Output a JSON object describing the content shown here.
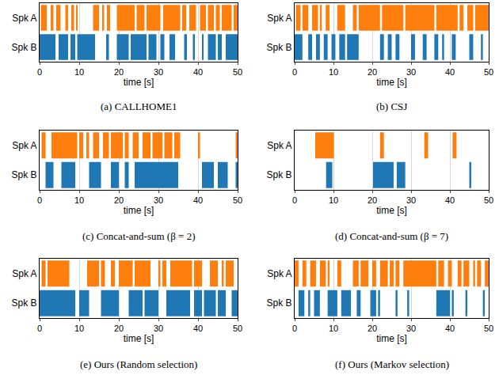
{
  "chart_data": [
    {
      "type": "timeline",
      "title": "(a) CALLHOME1",
      "x_label": "time [s]",
      "xlim": [
        0,
        50
      ],
      "xticks": [
        0,
        10,
        20,
        30,
        40,
        50
      ],
      "grid": true,
      "categories": [
        "Spk A",
        "Spk B"
      ],
      "series": [
        {
          "name": "Spk A",
          "color": "#ff7f0e",
          "segments": [
            [
              0.3,
              1.8
            ],
            [
              2.8,
              3.5
            ],
            [
              4.2,
              5.3
            ],
            [
              6.5,
              7.2
            ],
            [
              8,
              8.7
            ],
            [
              9.2,
              9.6
            ],
            [
              13.5,
              15
            ],
            [
              15.8,
              16.3
            ],
            [
              17,
              17.8
            ],
            [
              19.5,
              24
            ],
            [
              24.5,
              26.5
            ],
            [
              27,
              30.5
            ],
            [
              31.2,
              35.5
            ],
            [
              36,
              37
            ],
            [
              37.8,
              39.5
            ],
            [
              40.5,
              42
            ],
            [
              42.5,
              44
            ],
            [
              44.5,
              45.5
            ],
            [
              46,
              48.5
            ],
            [
              49,
              50
            ]
          ]
        },
        {
          "name": "Spk B",
          "color": "#1f77b4",
          "segments": [
            [
              0,
              4
            ],
            [
              4.8,
              7.2
            ],
            [
              7.8,
              9
            ],
            [
              9.5,
              14
            ],
            [
              16.8,
              17.5
            ],
            [
              19.5,
              22.5
            ],
            [
              23,
              27
            ],
            [
              27.5,
              29.5
            ],
            [
              30.5,
              31.5
            ],
            [
              32.8,
              34.2
            ],
            [
              36.5,
              37.2
            ],
            [
              38.7,
              39.2
            ],
            [
              41,
              41.3
            ],
            [
              42.5,
              44.5
            ],
            [
              45,
              46
            ],
            [
              47,
              50
            ]
          ]
        }
      ]
    },
    {
      "type": "timeline",
      "title": "(b) CSJ",
      "x_label": "time [s]",
      "xlim": [
        0,
        50
      ],
      "xticks": [
        0,
        10,
        20,
        30,
        40,
        50
      ],
      "grid": true,
      "categories": [
        "Spk A",
        "Spk B"
      ],
      "series": [
        {
          "name": "Spk A",
          "color": "#ff7f0e",
          "segments": [
            [
              0.3,
              1.5
            ],
            [
              2,
              3.5
            ],
            [
              4.5,
              6
            ],
            [
              6.5,
              7
            ],
            [
              8,
              9
            ],
            [
              11,
              13
            ],
            [
              15,
              16
            ],
            [
              16.5,
              22
            ],
            [
              22.5,
              28
            ],
            [
              28.5,
              36
            ],
            [
              36.5,
              42
            ],
            [
              42.5,
              43.5
            ],
            [
              44.5,
              46
            ],
            [
              46.5,
              50
            ]
          ]
        },
        {
          "name": "Spk B",
          "color": "#1f77b4",
          "segments": [
            [
              0,
              2
            ],
            [
              3.5,
              4.5
            ],
            [
              5.5,
              6.5
            ],
            [
              7.5,
              8.5
            ],
            [
              9.5,
              10.5
            ],
            [
              11.5,
              13
            ],
            [
              13.5,
              16.5
            ],
            [
              22,
              23
            ],
            [
              24,
              25
            ],
            [
              26,
              27
            ],
            [
              30,
              31
            ],
            [
              33,
              34
            ],
            [
              36,
              37
            ],
            [
              38,
              38.5
            ],
            [
              40.5,
              41.5
            ],
            [
              45,
              46
            ],
            [
              48,
              48.5
            ]
          ]
        }
      ]
    },
    {
      "type": "timeline",
      "title": "(c) Concat-and-sum (β = 2)",
      "x_label": "time [s]",
      "xlim": [
        0,
        50
      ],
      "xticks": [
        0,
        10,
        20,
        30,
        40,
        50
      ],
      "grid": true,
      "categories": [
        "Spk A",
        "Spk B"
      ],
      "series": [
        {
          "name": "Spk A",
          "color": "#ff7f0e",
          "segments": [
            [
              0.5,
              1.5
            ],
            [
              3,
              9.5
            ],
            [
              10,
              11
            ],
            [
              11.8,
              12.5
            ],
            [
              13.5,
              15
            ],
            [
              16,
              17.5
            ],
            [
              18,
              21
            ],
            [
              21.5,
              22.5
            ],
            [
              23.5,
              25
            ],
            [
              26,
              28
            ],
            [
              28.5,
              31
            ],
            [
              31.5,
              33.5
            ],
            [
              34,
              35.5
            ],
            [
              40,
              40.5
            ],
            [
              49.5,
              50
            ]
          ]
        },
        {
          "name": "Spk B",
          "color": "#1f77b4",
          "segments": [
            [
              1.5,
              3.5
            ],
            [
              5.5,
              9
            ],
            [
              12.5,
              15.5
            ],
            [
              18,
              20
            ],
            [
              21.5,
              22.5
            ],
            [
              24,
              35
            ],
            [
              41,
              44
            ],
            [
              45,
              47.5
            ],
            [
              49.5,
              50
            ]
          ]
        }
      ]
    },
    {
      "type": "timeline",
      "title": "(d) Concat-and-sum (β = 7)",
      "x_label": "time [s]",
      "xlim": [
        0,
        50
      ],
      "xticks": [
        0,
        10,
        20,
        30,
        40,
        50
      ],
      "grid": true,
      "categories": [
        "Spk A",
        "Spk B"
      ],
      "series": [
        {
          "name": "Spk A",
          "color": "#ff7f0e",
          "segments": [
            [
              5.3,
              10.1
            ],
            [
              22,
              23
            ],
            [
              33.4,
              34.4
            ],
            [
              40.7,
              41.7
            ]
          ]
        },
        {
          "name": "Spk B",
          "color": "#1f77b4",
          "segments": [
            [
              8.1,
              9.7
            ],
            [
              20.2,
              25.5
            ],
            [
              26.3,
              28.5
            ],
            [
              45,
              45.5
            ]
          ]
        }
      ]
    },
    {
      "type": "timeline",
      "title": "(e) Ours (Random selection)",
      "x_label": "time [s]",
      "xlim": [
        0,
        50
      ],
      "xticks": [
        0,
        10,
        20,
        30,
        40,
        50
      ],
      "grid": true,
      "categories": [
        "Spk A",
        "Spk B"
      ],
      "series": [
        {
          "name": "Spk A",
          "color": "#ff7f0e",
          "segments": [
            [
              0.5,
              1.5
            ],
            [
              2,
              7.5
            ],
            [
              12,
              15
            ],
            [
              15.5,
              16.5
            ],
            [
              18,
              19
            ],
            [
              20,
              23.5
            ],
            [
              24,
              28
            ],
            [
              30,
              30.5
            ],
            [
              31,
              32
            ],
            [
              33,
              38.5
            ],
            [
              39,
              41
            ],
            [
              43,
              45
            ],
            [
              46,
              46.5
            ],
            [
              47,
              49
            ]
          ]
        },
        {
          "name": "Spk B",
          "color": "#1f77b4",
          "segments": [
            [
              0,
              9
            ],
            [
              10,
              12.5
            ],
            [
              15.5,
              20
            ],
            [
              22.5,
              26
            ],
            [
              26.5,
              30
            ],
            [
              32,
              38
            ],
            [
              39,
              41
            ],
            [
              41.5,
              44.5
            ],
            [
              45,
              47
            ],
            [
              48.5,
              50
            ]
          ]
        }
      ]
    },
    {
      "type": "timeline",
      "title": "(f) Ours (Markov selection)",
      "x_label": "time [s]",
      "xlim": [
        0,
        50
      ],
      "xticks": [
        0,
        10,
        20,
        30,
        40,
        50
      ],
      "grid": true,
      "categories": [
        "Spk A",
        "Spk B"
      ],
      "series": [
        {
          "name": "Spk A",
          "color": "#ff7f0e",
          "segments": [
            [
              0,
              1
            ],
            [
              2,
              3
            ],
            [
              4,
              5.5
            ],
            [
              6.5,
              8
            ],
            [
              8.5,
              9
            ],
            [
              11,
              12
            ],
            [
              15,
              16.5
            ],
            [
              17,
              19
            ],
            [
              20,
              21
            ],
            [
              22,
              24
            ],
            [
              24.5,
              25.5
            ],
            [
              26,
              27
            ],
            [
              28,
              36.5
            ],
            [
              37,
              38.5
            ],
            [
              39.5,
              40.5
            ],
            [
              42,
              43
            ],
            [
              43.5,
              45
            ],
            [
              46,
              46.5
            ],
            [
              47,
              48
            ],
            [
              49,
              50
            ]
          ]
        },
        {
          "name": "Spk B",
          "color": "#1f77b4",
          "segments": [
            [
              1,
              2.5
            ],
            [
              3.5,
              4
            ],
            [
              5,
              6.5
            ],
            [
              8.5,
              11
            ],
            [
              12,
              14.5
            ],
            [
              16,
              17
            ],
            [
              19.5,
              21
            ],
            [
              21.5,
              22
            ],
            [
              26,
              26.5
            ],
            [
              29,
              29.5
            ],
            [
              36.5,
              40
            ],
            [
              40.5,
              41
            ],
            [
              44,
              44.5
            ],
            [
              48.5,
              49
            ]
          ]
        }
      ]
    }
  ]
}
